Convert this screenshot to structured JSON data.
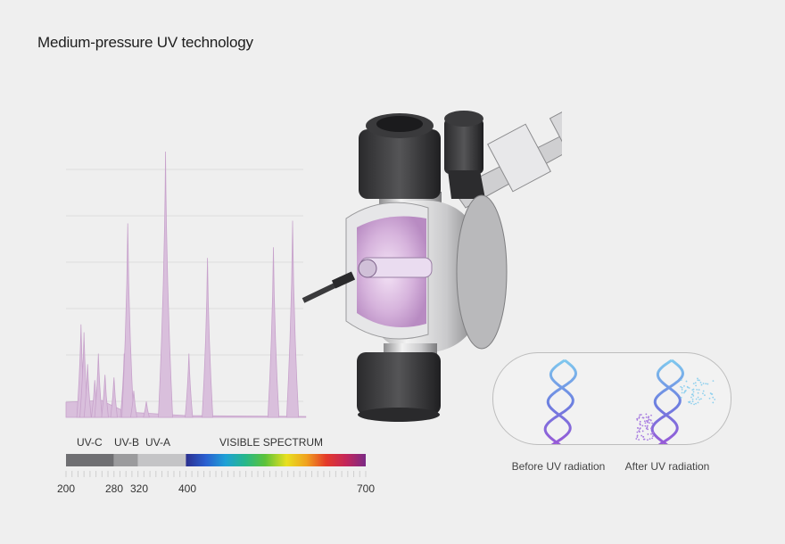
{
  "title": "Medium-pressure UV technology",
  "spectrum": {
    "bands": [
      {
        "label": "UV-C",
        "from": 200,
        "to": 280,
        "color": "#6f6f72"
      },
      {
        "label": "UV-B",
        "from": 280,
        "to": 320,
        "color": "#9b9b9d"
      },
      {
        "label": "UV-A",
        "from": 320,
        "to": 400,
        "color": "#c4c4c6"
      },
      {
        "label": "VISIBLE SPECTRUM",
        "from": 400,
        "to": 700,
        "color": "gradient"
      }
    ],
    "ticks": [
      "200",
      "280",
      "320",
      "400",
      "700"
    ],
    "emission_peaks": [
      {
        "wavelength": 225,
        "intensity": 0.35
      },
      {
        "wavelength": 230,
        "intensity": 0.32
      },
      {
        "wavelength": 236,
        "intensity": 0.2
      },
      {
        "wavelength": 248,
        "intensity": 0.14
      },
      {
        "wavelength": 254,
        "intensity": 0.24
      },
      {
        "wavelength": 265,
        "intensity": 0.16
      },
      {
        "wavelength": 280,
        "intensity": 0.15
      },
      {
        "wavelength": 297,
        "intensity": 0.24
      },
      {
        "wavelength": 303,
        "intensity": 0.73
      },
      {
        "wavelength": 313,
        "intensity": 0.1
      },
      {
        "wavelength": 334,
        "intensity": 0.06
      },
      {
        "wavelength": 366,
        "intensity": 1.0
      },
      {
        "wavelength": 405,
        "intensity": 0.24
      },
      {
        "wavelength": 436,
        "intensity": 0.6
      },
      {
        "wavelength": 546,
        "intensity": 0.64
      },
      {
        "wavelength": 578,
        "intensity": 0.74
      }
    ],
    "fill_color": "#d9bfdc",
    "stroke_color": "#c7a2cb"
  },
  "dna": {
    "before_caption": "Before UV radiation",
    "after_caption": "After UV radiation"
  }
}
